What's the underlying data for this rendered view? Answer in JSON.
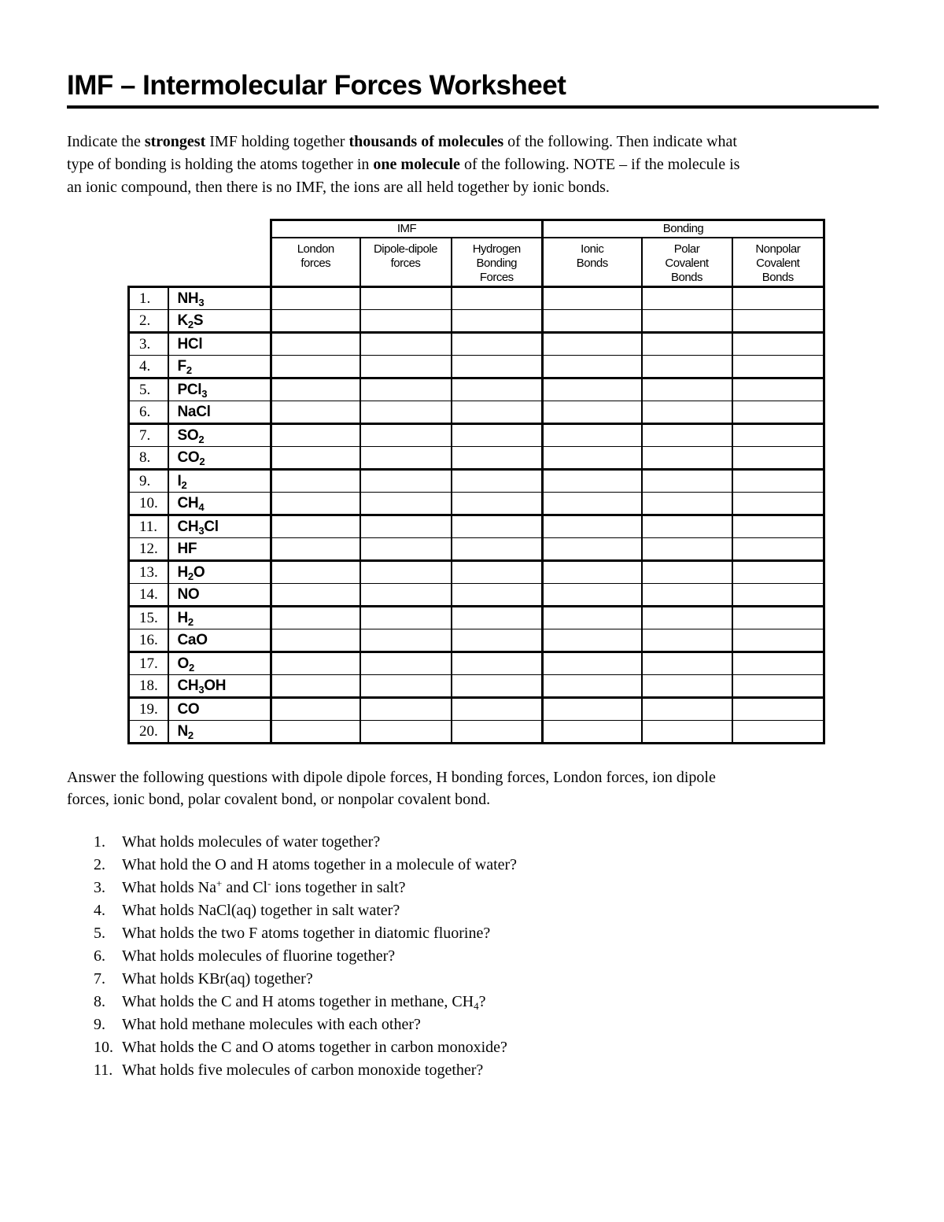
{
  "title": "IMF – Intermolecular Forces Worksheet",
  "intro_lines": [
    {
      "segments": [
        {
          "t": "Indicate the "
        },
        {
          "t": "strongest",
          "b": true
        },
        {
          "t": " IMF holding together "
        },
        {
          "t": "thousands of molecules",
          "b": true
        },
        {
          "t": " of the following.  Then indicate what"
        }
      ]
    },
    {
      "segments": [
        {
          "t": "type of bonding is holding the atoms together in "
        },
        {
          "t": "one molecule",
          "b": true
        },
        {
          "t": " of the following. NOTE – if the molecule is"
        }
      ]
    },
    {
      "segments": [
        {
          "t": "an ionic compound, then there is no IMF, the ions are all held together by ionic bonds."
        }
      ]
    }
  ],
  "table": {
    "group_headers": [
      "IMF",
      "Bonding"
    ],
    "column_headers": [
      "London\nforces",
      "Dipole-dipole\nforces",
      "Hydrogen\nBonding\nForces",
      "Ionic\nBonds",
      "Polar\nCovalent\nBonds",
      "Nonpolar\nCovalent\nBonds"
    ],
    "empty_cell_count": 6,
    "rows": [
      {
        "num": "1.",
        "formula": [
          {
            "t": "NH"
          },
          {
            "t": "3",
            "sub": true
          }
        ]
      },
      {
        "num": "2.",
        "formula": [
          {
            "t": "K"
          },
          {
            "t": "2",
            "sub": true
          },
          {
            "t": "S"
          }
        ]
      },
      {
        "num": "3.",
        "formula": [
          {
            "t": "HCl"
          }
        ]
      },
      {
        "num": "4.",
        "formula": [
          {
            "t": "F"
          },
          {
            "t": "2",
            "sub": true
          }
        ]
      },
      {
        "num": "5.",
        "formula": [
          {
            "t": "PCl"
          },
          {
            "t": "3",
            "sub": true
          }
        ]
      },
      {
        "num": "6.",
        "formula": [
          {
            "t": "NaCl"
          }
        ]
      },
      {
        "num": "7.",
        "formula": [
          {
            "t": "SO"
          },
          {
            "t": "2",
            "sub": true
          }
        ]
      },
      {
        "num": "8.",
        "formula": [
          {
            "t": "CO"
          },
          {
            "t": "2",
            "sub": true
          }
        ]
      },
      {
        "num": "9.",
        "formula": [
          {
            "t": "I"
          },
          {
            "t": "2",
            "sub": true
          }
        ]
      },
      {
        "num": "10.",
        "formula": [
          {
            "t": "CH"
          },
          {
            "t": "4",
            "sub": true
          }
        ]
      },
      {
        "num": "11.",
        "formula": [
          {
            "t": "CH"
          },
          {
            "t": "3",
            "sub": true
          },
          {
            "t": "Cl"
          }
        ]
      },
      {
        "num": "12.",
        "formula": [
          {
            "t": "HF"
          }
        ]
      },
      {
        "num": "13.",
        "formula": [
          {
            "t": "H"
          },
          {
            "t": "2",
            "sub": true
          },
          {
            "t": "O"
          }
        ]
      },
      {
        "num": "14.",
        "formula": [
          {
            "t": "NO"
          }
        ]
      },
      {
        "num": "15.",
        "formula": [
          {
            "t": "H"
          },
          {
            "t": "2",
            "sub": true
          }
        ]
      },
      {
        "num": "16.",
        "formula": [
          {
            "t": "CaO"
          }
        ]
      },
      {
        "num": "17.",
        "formula": [
          {
            "t": "O"
          },
          {
            "t": "2",
            "sub": true
          }
        ]
      },
      {
        "num": "18.",
        "formula": [
          {
            "t": "CH"
          },
          {
            "t": "3",
            "sub": true
          },
          {
            "t": "OH"
          }
        ]
      },
      {
        "num": "19.",
        "formula": [
          {
            "t": "CO"
          }
        ]
      },
      {
        "num": "20.",
        "formula": [
          {
            "t": "N"
          },
          {
            "t": "2",
            "sub": true
          }
        ]
      }
    ]
  },
  "answer_prompt_lines": [
    "Answer the following questions with dipole dipole forces, H bonding forces, London forces, ion dipole",
    "forces, ionic bond, polar covalent bond, or nonpolar covalent bond."
  ],
  "questions": [
    {
      "num": "1.",
      "segments": [
        {
          "t": "What holds molecules of water together?"
        }
      ]
    },
    {
      "num": "2.",
      "segments": [
        {
          "t": "What hold the O and H atoms together in a molecule of water?"
        }
      ]
    },
    {
      "num": "3.",
      "segments": [
        {
          "t": "What holds Na"
        },
        {
          "t": "+",
          "sup": true
        },
        {
          "t": " and Cl"
        },
        {
          "t": "-",
          "sup": true
        },
        {
          "t": " ions together in salt?"
        }
      ]
    },
    {
      "num": "4.",
      "segments": [
        {
          "t": "What holds NaCl(aq) together in salt water?"
        }
      ]
    },
    {
      "num": "5.",
      "segments": [
        {
          "t": "What holds the two F atoms together in diatomic fluorine?"
        }
      ]
    },
    {
      "num": "6.",
      "segments": [
        {
          "t": "What holds molecules of fluorine together?"
        }
      ]
    },
    {
      "num": "7.",
      "segments": [
        {
          "t": "What holds KBr(aq) together?"
        }
      ]
    },
    {
      "num": "8.",
      "segments": [
        {
          "t": "What holds the C and H atoms together in methane, CH"
        },
        {
          "t": "4",
          "sub": true
        },
        {
          "t": "?"
        }
      ]
    },
    {
      "num": "9.",
      "segments": [
        {
          "t": "What hold methane molecules with each other?"
        }
      ]
    },
    {
      "num": "10.",
      "segments": [
        {
          "t": "What holds the C and O atoms together in carbon monoxide?"
        }
      ]
    },
    {
      "num": "11.",
      "segments": [
        {
          "t": "What holds five molecules of carbon monoxide together?"
        }
      ]
    }
  ]
}
